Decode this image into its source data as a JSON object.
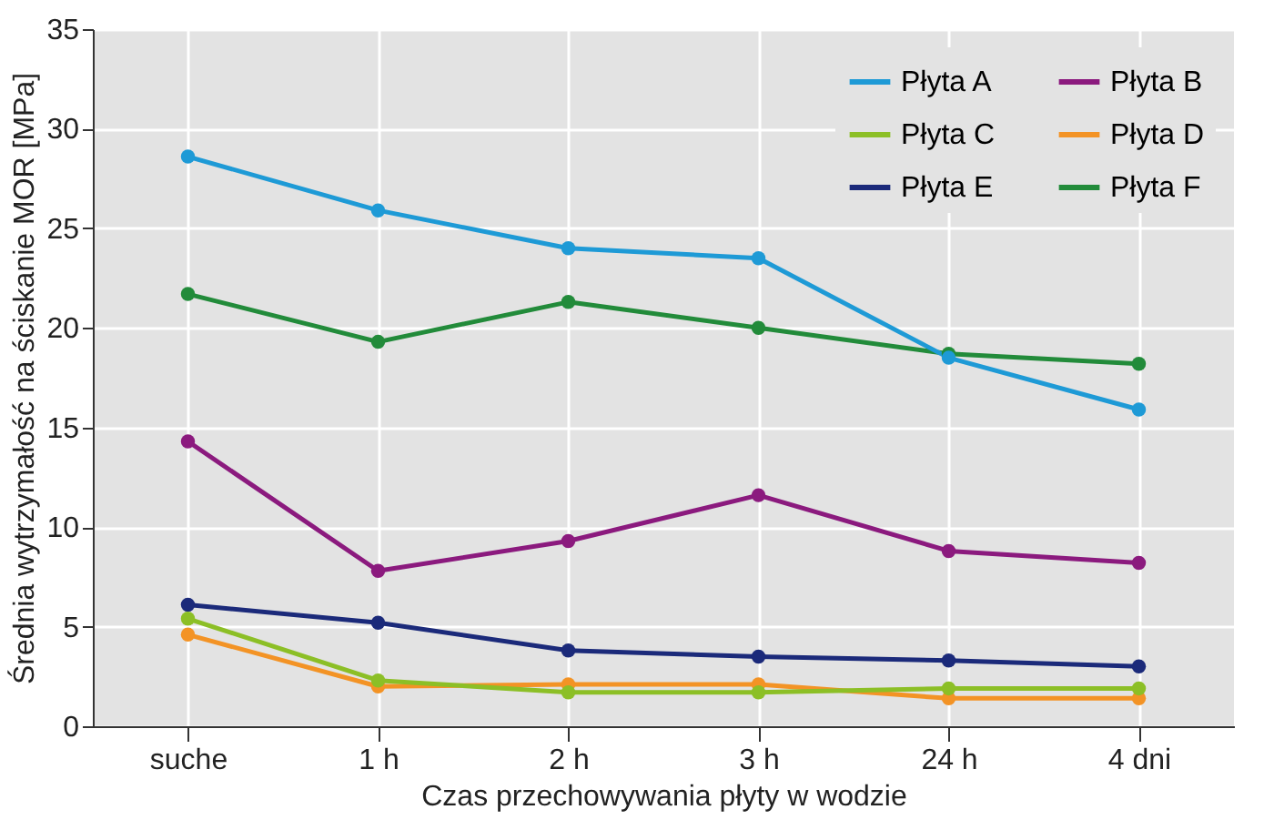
{
  "chart_data": {
    "type": "line",
    "xlabel": "Czas przechowywania płyty w wodzie",
    "ylabel": "Średnia wytrzymałość na ściskanie MOR [MPa]",
    "categories": [
      "suche",
      "1 h",
      "2 h",
      "3 h",
      "24 h",
      "4 dni"
    ],
    "series": [
      {
        "name": "Płyta A",
        "color": "#1e9ad6",
        "values": [
          28.6,
          25.9,
          24.0,
          23.5,
          18.5,
          15.9
        ]
      },
      {
        "name": "Płyta B",
        "color": "#8b1a7e",
        "values": [
          14.3,
          7.8,
          9.3,
          11.6,
          8.8,
          8.2
        ]
      },
      {
        "name": "Płyta C",
        "color": "#8cbf26",
        "values": [
          5.4,
          2.3,
          1.7,
          1.7,
          1.9,
          1.9
        ]
      },
      {
        "name": "Płyta D",
        "color": "#f39325",
        "values": [
          4.6,
          2.0,
          2.1,
          2.1,
          1.4,
          1.4
        ]
      },
      {
        "name": "Płyta E",
        "color": "#1b2a7a",
        "values": [
          6.1,
          5.2,
          3.8,
          3.5,
          3.3,
          3.0
        ]
      },
      {
        "name": "Płyta F",
        "color": "#228b3a",
        "values": [
          21.7,
          19.3,
          21.3,
          20.0,
          18.7,
          18.2
        ]
      }
    ],
    "ylim": [
      0,
      35
    ],
    "yticks": [
      0,
      5,
      10,
      15,
      20,
      25,
      30,
      35
    ],
    "grid": true,
    "legend": "top right",
    "marker": "circle",
    "line_style": "solid"
  }
}
